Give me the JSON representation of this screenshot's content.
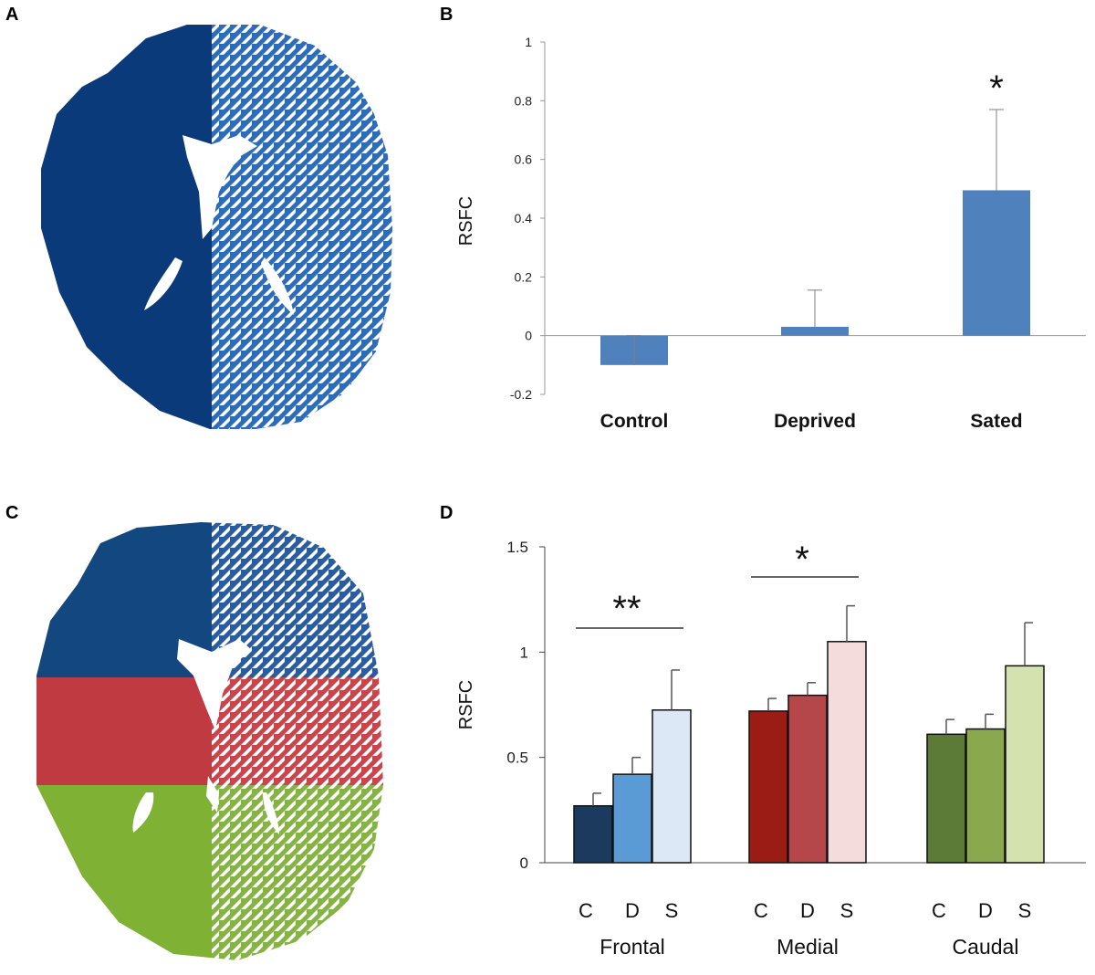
{
  "panels": {
    "a": "A",
    "b": "B",
    "c": "C",
    "d": "D"
  },
  "colors": {
    "navy": "#0b3a7a",
    "pattern_blue": "#2d6cb8",
    "region_frontal": "#12487f",
    "region_medial": "#bf3a41",
    "region_caudal": "#7fb134"
  },
  "chart_data": [
    {
      "panel": "B",
      "type": "bar",
      "title": "",
      "xlabel": "",
      "ylabel": "RSFC",
      "categories": [
        "Control",
        "Deprived",
        "Sated"
      ],
      "values": [
        -0.1,
        0.03,
        0.495
      ],
      "error_upper": [
        0.0,
        0.155,
        0.77
      ],
      "ylim": [
        -0.2,
        1
      ],
      "yticks": [
        "-0.2",
        "0",
        "0.2",
        "0.4",
        "0.6",
        "0.8",
        "1"
      ],
      "bar_color": "#4f81bd",
      "annotations": [
        {
          "text": "*",
          "category": "Sated"
        }
      ]
    },
    {
      "panel": "D",
      "type": "bar",
      "title": "",
      "xlabel": "",
      "ylabel": "RSFC",
      "groups": [
        "Frontal",
        "Medial",
        "Caudal"
      ],
      "subcategories": [
        "C",
        "D",
        "S"
      ],
      "series": [
        {
          "group": "Frontal",
          "values": [
            0.27,
            0.42,
            0.725
          ],
          "errors": [
            0.06,
            0.08,
            0.19
          ],
          "colors": [
            "#1b3a5e",
            "#5b9bd5",
            "#dce8f6"
          ]
        },
        {
          "group": "Medial",
          "values": [
            0.72,
            0.795,
            1.05
          ],
          "errors": [
            0.06,
            0.06,
            0.17
          ],
          "colors": [
            "#9b1c14",
            "#b5474a",
            "#f5dcdc"
          ]
        },
        {
          "group": "Caudal",
          "values": [
            0.61,
            0.635,
            0.935
          ],
          "errors": [
            0.07,
            0.07,
            0.205
          ],
          "colors": [
            "#5b7b36",
            "#8aa94f",
            "#d4e2b0"
          ]
        }
      ],
      "ylim": [
        0,
        1.5
      ],
      "yticks": [
        "0",
        "0.5",
        "1",
        "1.5"
      ],
      "annotations": [
        {
          "text": "**",
          "group": "Frontal",
          "from": "C",
          "to": "S"
        },
        {
          "text": "*",
          "group": "Medial",
          "from": "C",
          "to": "S"
        }
      ]
    }
  ]
}
